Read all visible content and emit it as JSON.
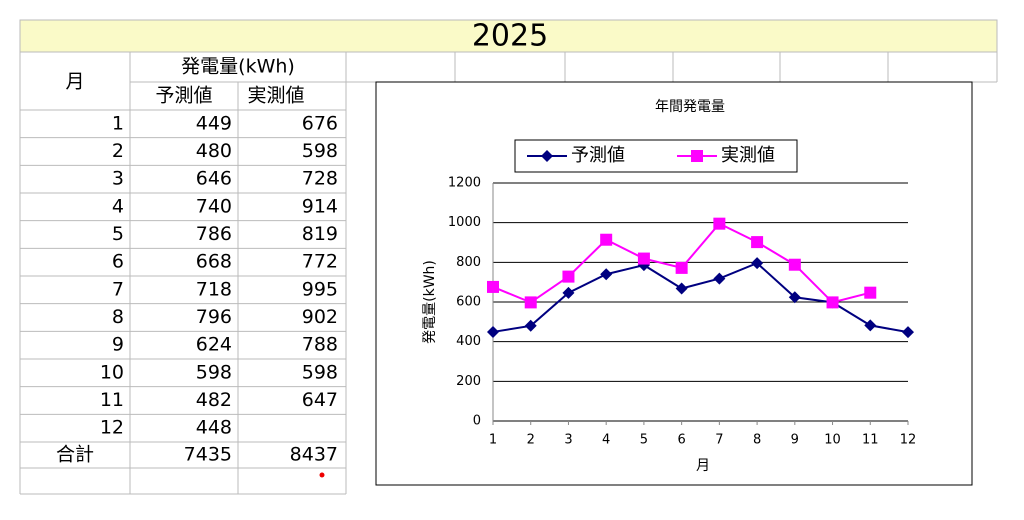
{
  "title": "2025",
  "table": {
    "month_header": "月",
    "group_header": "発電量(kWh)",
    "sub_headers": [
      "予測値",
      "実測値"
    ],
    "rows": [
      [
        1,
        449,
        676
      ],
      [
        2,
        480,
        598
      ],
      [
        3,
        646,
        728
      ],
      [
        4,
        740,
        914
      ],
      [
        5,
        786,
        819
      ],
      [
        6,
        668,
        772
      ],
      [
        7,
        718,
        995
      ],
      [
        8,
        796,
        902
      ],
      [
        9,
        624,
        788
      ],
      [
        10,
        598,
        598
      ],
      [
        11,
        482,
        647
      ],
      [
        12,
        448,
        null
      ]
    ],
    "total": {
      "label": "合計",
      "values": [
        7435,
        8437
      ]
    }
  },
  "chart_data": {
    "type": "line",
    "title": "年間発電量",
    "x_label": "月",
    "y_label": "発電量(kWh)",
    "x": [
      1,
      2,
      3,
      4,
      5,
      6,
      7,
      8,
      9,
      10,
      11,
      12
    ],
    "series": [
      {
        "name": "予測値",
        "color": "#000080",
        "marker": "diamond",
        "values": [
          449,
          480,
          646,
          740,
          786,
          668,
          718,
          796,
          624,
          598,
          482,
          448
        ]
      },
      {
        "name": "実測値",
        "color": "#ff00ff",
        "marker": "square",
        "values": [
          676,
          598,
          728,
          914,
          819,
          772,
          995,
          902,
          788,
          598,
          647,
          null
        ]
      }
    ],
    "ylim": [
      0,
      1200
    ],
    "yticks": [
      0,
      200,
      400,
      600,
      800,
      1000,
      1200
    ],
    "grid": true,
    "legend": "top"
  }
}
